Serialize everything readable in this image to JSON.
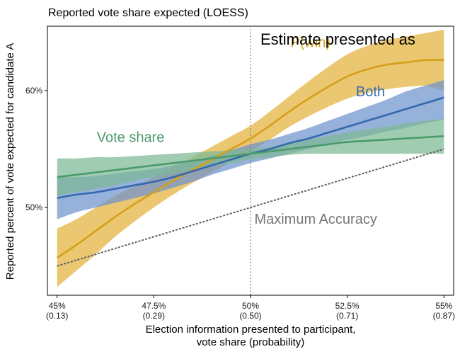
{
  "chart_data": {
    "type": "line",
    "title": "Reported vote share expected (LOESS)",
    "xlabel": "Election information presented to participant,",
    "xlabel_line2": "vote share (probability)",
    "ylabel": "Reported percent of vote expected for candidate A",
    "legend_title": "Estimate presented as",
    "x_ticks": [
      {
        "value": 45,
        "label": "45%",
        "sub": "(0.13)"
      },
      {
        "value": 47.5,
        "label": "47.5%",
        "sub": "(0.29)"
      },
      {
        "value": 50,
        "label": "50%",
        "sub": "(0.50)"
      },
      {
        "value": 52.5,
        "label": "52.5%",
        "sub": "(0.71)"
      },
      {
        "value": 55,
        "label": "55%",
        "sub": "(0.87)"
      }
    ],
    "y_ticks": [
      {
        "value": 50,
        "label": "50%"
      },
      {
        "value": 60,
        "label": "60%"
      }
    ],
    "xlim": [
      44.75,
      55.25
    ],
    "ylim": [
      42.5,
      65.5
    ],
    "grid": false,
    "reference_line": {
      "x": 50,
      "style": "dotted"
    },
    "series": [
      {
        "name": "P(win)",
        "color": "#D4A017",
        "band_color": "#E3B23C",
        "x": [
          45,
          45.5,
          46,
          46.5,
          47,
          47.5,
          48,
          48.5,
          49,
          49.5,
          50,
          50.5,
          51,
          51.5,
          52,
          52.5,
          53,
          53.5,
          54,
          54.5,
          55
        ],
        "y": [
          45.7,
          46.8,
          48.0,
          49.2,
          50.3,
          51.3,
          52.3,
          53.2,
          54.1,
          55.0,
          55.9,
          57.0,
          58.2,
          59.3,
          60.3,
          61.2,
          61.8,
          62.2,
          62.4,
          62.6,
          62.6
        ],
        "lower": [
          43.2,
          44.6,
          46.0,
          47.5,
          48.8,
          50.0,
          51.1,
          52.1,
          53.0,
          53.9,
          54.8,
          55.8,
          56.9,
          57.8,
          58.6,
          59.3,
          59.8,
          60.1,
          60.3,
          60.4,
          60.0
        ],
        "upper": [
          48.2,
          49.0,
          50.0,
          51.0,
          51.8,
          52.6,
          53.5,
          54.3,
          55.2,
          56.1,
          57.0,
          58.2,
          59.5,
          60.8,
          62.0,
          63.1,
          63.8,
          64.3,
          64.6,
          64.9,
          65.2
        ]
      },
      {
        "name": "Both",
        "color": "#3568AE",
        "band_color": "#6E93CC",
        "x": [
          45,
          45.5,
          46,
          46.5,
          47,
          47.5,
          48,
          48.5,
          49,
          49.5,
          50,
          50.5,
          51,
          51.5,
          52,
          52.5,
          53,
          53.5,
          54,
          54.5,
          55
        ],
        "y": [
          50.8,
          51.1,
          51.3,
          51.6,
          51.9,
          52.2,
          52.6,
          53.1,
          53.6,
          54.1,
          54.6,
          55.0,
          55.5,
          55.9,
          56.4,
          56.9,
          57.4,
          57.9,
          58.4,
          58.9,
          59.4
        ],
        "lower": [
          49.0,
          49.6,
          50.0,
          50.4,
          50.8,
          51.2,
          51.7,
          52.2,
          52.8,
          53.3,
          53.8,
          54.2,
          54.6,
          55.0,
          55.4,
          55.8,
          56.1,
          56.5,
          56.8,
          57.2,
          57.5
        ],
        "upper": [
          52.6,
          52.6,
          52.7,
          52.9,
          53.1,
          53.3,
          53.6,
          54.0,
          54.4,
          54.9,
          55.4,
          55.8,
          56.3,
          56.8,
          57.4,
          58.0,
          58.6,
          59.2,
          59.9,
          60.4,
          60.9
        ]
      },
      {
        "name": "Vote share",
        "color": "#4A9A6A",
        "band_color": "#7CB894",
        "x": [
          45,
          45.5,
          46,
          46.5,
          47,
          47.5,
          48,
          48.5,
          49,
          49.5,
          50,
          50.5,
          51,
          51.5,
          52,
          52.5,
          53,
          53.5,
          54,
          54.5,
          55
        ],
        "y": [
          52.6,
          52.8,
          53.0,
          53.2,
          53.4,
          53.6,
          53.8,
          54.0,
          54.2,
          54.4,
          54.6,
          54.8,
          55.0,
          55.2,
          55.4,
          55.6,
          55.7,
          55.8,
          55.9,
          56.0,
          56.1
        ],
        "lower": [
          51.0,
          51.3,
          51.6,
          51.9,
          52.3,
          52.6,
          52.9,
          53.2,
          53.5,
          53.8,
          54.1,
          54.3,
          54.5,
          54.6,
          54.6,
          54.6,
          54.6,
          54.6,
          54.6,
          54.6,
          54.6
        ],
        "upper": [
          54.2,
          54.2,
          54.3,
          54.3,
          54.4,
          54.5,
          54.6,
          54.7,
          54.8,
          54.9,
          55.0,
          55.2,
          55.5,
          55.8,
          56.1,
          56.4,
          56.7,
          56.9,
          57.2,
          57.4,
          57.6
        ]
      }
    ],
    "reference_series": {
      "name": "Maximum Accuracy",
      "color": "#606060",
      "x": [
        45,
        55
      ],
      "y": [
        45,
        55
      ]
    }
  }
}
